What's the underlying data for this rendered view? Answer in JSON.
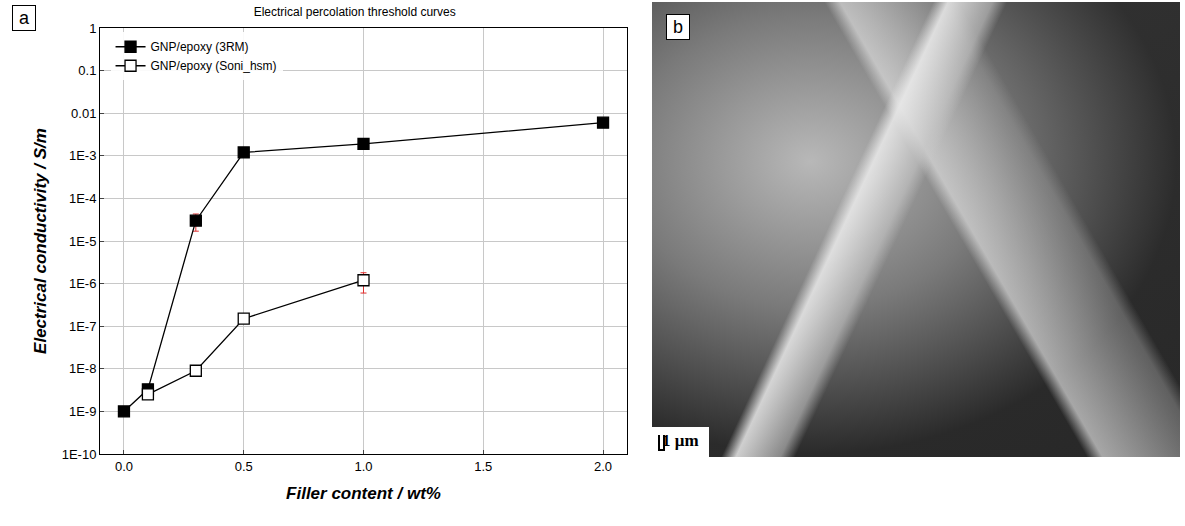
{
  "chart_data": {
    "type": "line",
    "title": "Electrical percolation threshold curves",
    "panel_label": "a",
    "x_label": "Filler content / wt%",
    "y_label": "Electrical conductivity / S/m",
    "log": "y",
    "grid": true,
    "legend": "upper left",
    "xlim": [
      -0.1,
      2.1
    ],
    "xticks": [
      {
        "value": 0,
        "label": "0.0"
      },
      {
        "value": 0.5,
        "label": "0.5"
      },
      {
        "value": 1,
        "label": "1.0"
      },
      {
        "value": 1.5,
        "label": "1.5"
      },
      {
        "value": 2,
        "label": "2.0"
      }
    ],
    "ylim": [
      1e-10,
      1
    ],
    "yticks": [
      {
        "value": 1e-10,
        "label": "1E-10"
      },
      {
        "value": 1e-09,
        "label": "1E-9"
      },
      {
        "value": 1e-08,
        "label": "1E-8"
      },
      {
        "value": 1e-07,
        "label": "1E-7"
      },
      {
        "value": 1e-06,
        "label": "1E-6"
      },
      {
        "value": 1e-05,
        "label": "1E-5"
      },
      {
        "value": 0.0001,
        "label": "1E-4"
      },
      {
        "value": 0.001,
        "label": "1E-3"
      },
      0.01,
      0.1,
      1
    ],
    "series": [
      {
        "name": "GNP/epoxy (3RM)",
        "color": "#000000",
        "marker": "square",
        "line_style": "solid",
        "x": [
          0,
          0.1,
          0.3,
          0.5,
          1.0,
          2.0
        ],
        "values": [
          1e-09,
          3.3e-09,
          3e-05,
          0.0012,
          0.0019,
          0.006
        ],
        "errors": [
          1e-10,
          8e-10,
          1.3e-05,
          0.00015,
          0.0002,
          0.0005
        ]
      },
      {
        "name": "GNP/epoxy (Soni_hsm)",
        "color": "#000000",
        "marker": "square-open",
        "line_style": "solid",
        "x": [
          0.1,
          0.3,
          0.5,
          1.0
        ],
        "values": [
          2.5e-09,
          9e-09,
          1.5e-07,
          1.2e-06
        ],
        "errors": [
          5e-10,
          1e-09,
          2e-08,
          6e-07
        ]
      }
    ]
  },
  "image_panel": {
    "panel_label": "b",
    "scale_bar": "1 μm"
  }
}
